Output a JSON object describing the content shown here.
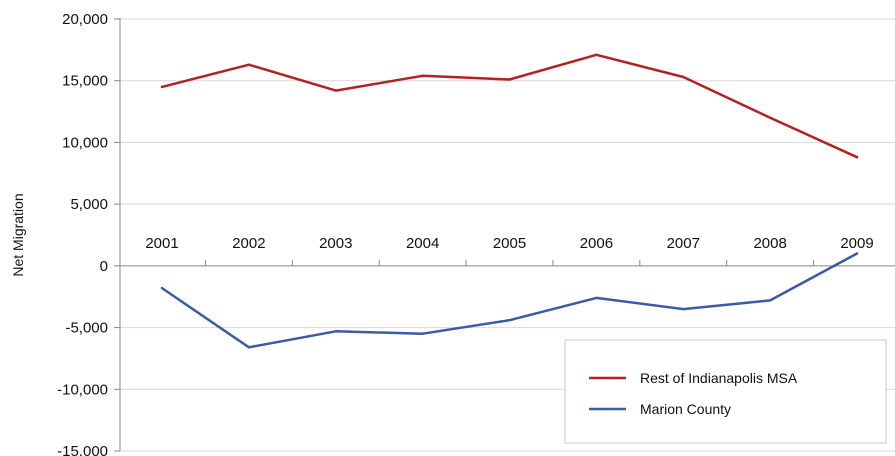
{
  "chart_data": {
    "type": "line",
    "title": "",
    "xlabel": "",
    "ylabel": "Net Migration",
    "categories": [
      "2001",
      "2002",
      "2003",
      "2004",
      "2005",
      "2006",
      "2007",
      "2008",
      "2009"
    ],
    "ylim": [
      -15000,
      20000
    ],
    "yticks": [
      20000,
      15000,
      10000,
      5000,
      0,
      -5000,
      -10000,
      -15000
    ],
    "ytick_labels": [
      "20,000",
      "15,000",
      "10,000",
      "5,000",
      "0",
      "-5,000",
      "-10,000",
      "-15,000"
    ],
    "grid": true,
    "legend_position": "bottom-right",
    "series": [
      {
        "name": "Rest of Indianapolis MSA",
        "color": "#b22222",
        "values": [
          14500,
          16300,
          14200,
          15400,
          15100,
          17100,
          15300,
          12000,
          8800
        ]
      },
      {
        "name": "Marion County",
        "color": "#3b5ba5",
        "values": [
          -1800,
          -6600,
          -5300,
          -5500,
          -4400,
          -2600,
          -3500,
          -2800,
          1000
        ]
      }
    ]
  }
}
